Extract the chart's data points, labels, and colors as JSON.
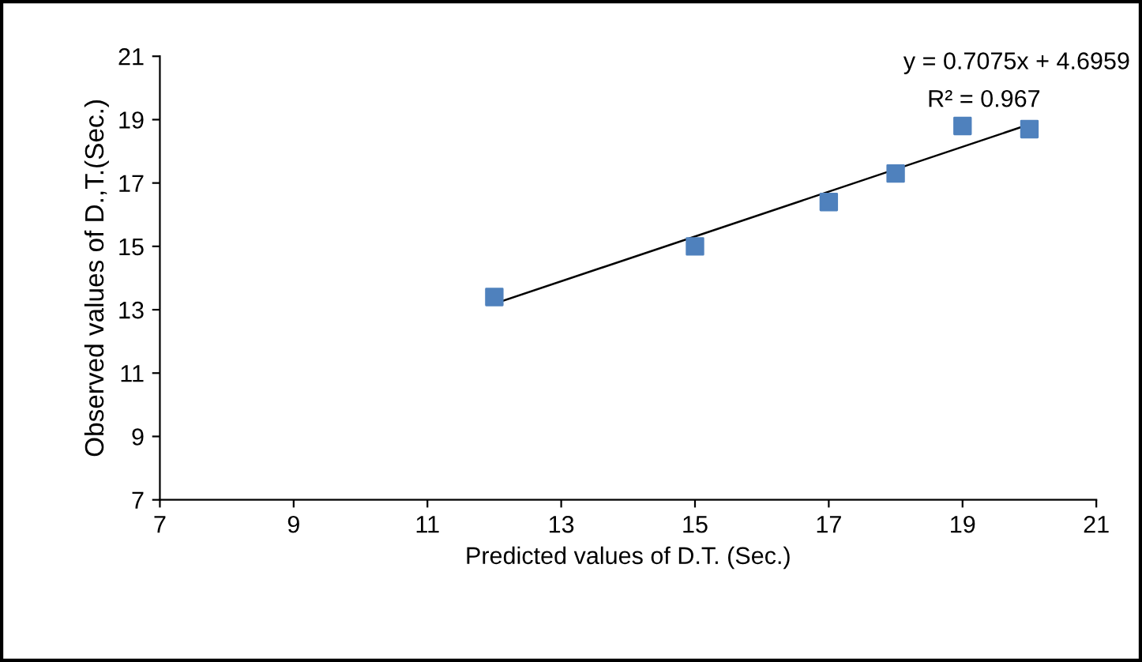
{
  "chart_data": {
    "type": "scatter",
    "xlabel": "Predicted values of D.T. (Sec.)",
    "ylabel": "Observed values of D.,T.(Sec.)",
    "annotations": [
      "y = 0.7075x + 4.6959",
      "R² = 0.967"
    ],
    "series": [
      {
        "color": "#4f81bd",
        "marker": "square",
        "x": [
          12,
          15,
          17,
          18,
          19,
          20
        ],
        "values": [
          13.4,
          15.0,
          16.4,
          17.3,
          18.8,
          18.7
        ]
      },
      {
        "type": "line",
        "color": "#000000",
        "marker": "none",
        "x": [
          12,
          20
        ],
        "values": [
          13.19,
          18.85
        ]
      }
    ],
    "xlim": [
      7,
      21
    ],
    "xticks": [
      7,
      9,
      11,
      13,
      15,
      17,
      19,
      21
    ],
    "ylim": [
      7,
      21
    ],
    "yticks": [
      7,
      9,
      11,
      13,
      15,
      17,
      19,
      21
    ],
    "grid": false,
    "legend": false
  }
}
